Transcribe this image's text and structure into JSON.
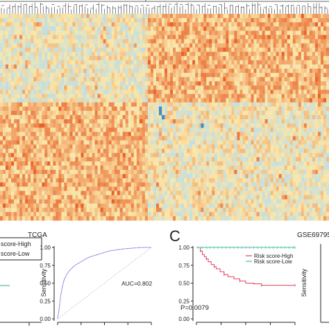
{
  "colors": {
    "heat_high": "#e8622a",
    "heat_mid": "#fbe7a8",
    "heat_low": "#b6dcef",
    "heat_lowest": "#3f8fcc",
    "roc_curve": "#5a5ad0",
    "km_high": "#e0405a",
    "km_low": "#40c0a0",
    "axis": "#222222"
  },
  "panel_left": {
    "title": "TCGA",
    "legend_high": "score-High",
    "legend_low": "score-Low"
  },
  "chart_data": [
    {
      "type": "heatmap",
      "title": "",
      "rows": 49,
      "cols": 118,
      "row_groups": [
        "upper block: right half higher",
        "lower block: left half higher"
      ],
      "scale": "low (blue) to high (orange)",
      "dendrogram": "top"
    },
    {
      "type": "line",
      "title": "TCGA",
      "ylabel": "Sensitivity",
      "xlabel": "",
      "ylim": [
        0,
        1
      ],
      "yticks": [
        "0.00",
        "0.25",
        "0.50",
        "0.75",
        "1.00"
      ],
      "annotation": "AUC=0.802",
      "diagonal": true,
      "series": [
        {
          "x": [
            0,
            0.01,
            0.02,
            0.03,
            0.05,
            0.07,
            0.1,
            0.13,
            0.16,
            0.2,
            0.25,
            0.3,
            0.35,
            0.4,
            0.45,
            0.5,
            0.55,
            0.6,
            0.65,
            0.7,
            0.8,
            0.9,
            1.0
          ],
          "y": [
            0,
            0.08,
            0.18,
            0.3,
            0.45,
            0.55,
            0.63,
            0.68,
            0.72,
            0.76,
            0.8,
            0.84,
            0.87,
            0.89,
            0.91,
            0.93,
            0.95,
            0.96,
            0.97,
            0.98,
            0.99,
            1.0,
            1.0
          ]
        }
      ]
    },
    {
      "type": "line",
      "panel_letter": "C",
      "title": "GSE69795",
      "xlabel": "",
      "ylabel": "",
      "ylim": [
        0,
        1
      ],
      "yticks": [
        "0.00",
        "0.25",
        "0.50",
        "0.75",
        "1.00"
      ],
      "annotation": "P=0.0079",
      "legend": [
        "Risk score-High",
        "Risk score-Low"
      ],
      "series": [
        {
          "name": "Risk score-High",
          "x": [
            0,
            4,
            6,
            8,
            10,
            12,
            15,
            18,
            20,
            24,
            28,
            32,
            38,
            44,
            50,
            58,
            66,
            74,
            80,
            100
          ],
          "y": [
            1.0,
            0.95,
            0.9,
            0.87,
            0.84,
            0.8,
            0.76,
            0.73,
            0.7,
            0.66,
            0.62,
            0.59,
            0.56,
            0.53,
            0.5,
            0.49,
            0.47,
            0.47,
            0.47,
            0.47
          ]
        },
        {
          "name": "Risk score-Low",
          "x": [
            0,
            100
          ],
          "y": [
            1.0,
            1.0
          ]
        }
      ],
      "xlim": [
        0,
        100
      ]
    },
    {
      "type": "line",
      "title": "",
      "ylabel": "Sensitivity",
      "partial": true
    }
  ]
}
